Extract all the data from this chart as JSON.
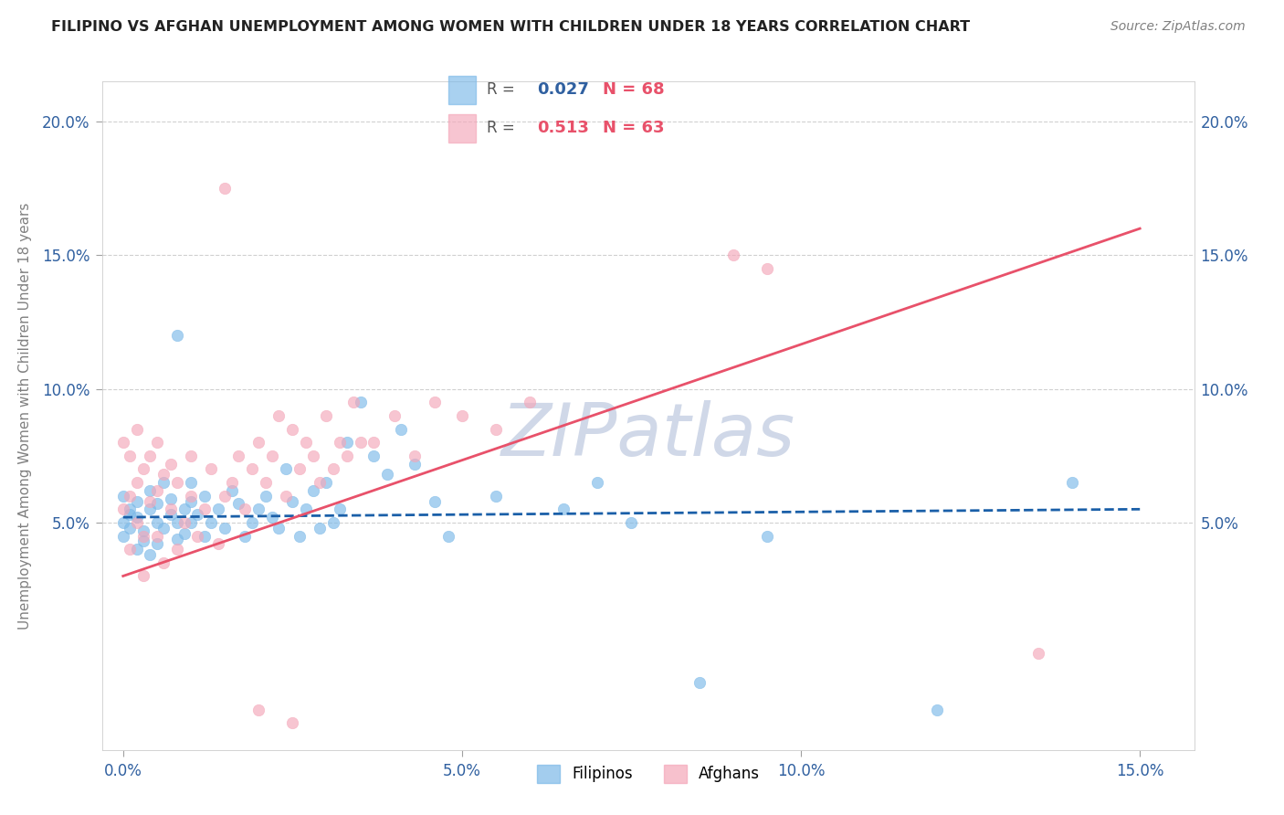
{
  "title": "FILIPINO VS AFGHAN UNEMPLOYMENT AMONG WOMEN WITH CHILDREN UNDER 18 YEARS CORRELATION CHART",
  "source": "Source: ZipAtlas.com",
  "ylabel": "Unemployment Among Women with Children Under 18 years",
  "ytick_values": [
    0.05,
    0.1,
    0.15,
    0.2
  ],
  "ytick_labels": [
    "5.0%",
    "10.0%",
    "15.0%",
    "20.0%"
  ],
  "xtick_values": [
    0.0,
    0.05,
    0.1,
    0.15
  ],
  "xtick_labels": [
    "0.0%",
    "5.0%",
    "10.0%",
    "15.0%"
  ],
  "xlim": [
    -0.003,
    0.158
  ],
  "ylim": [
    -0.035,
    0.215
  ],
  "legend_filipinos_R": "0.027",
  "legend_filipinos_N": "68",
  "legend_afghans_R": "0.513",
  "legend_afghans_N": "63",
  "color_filipinos": "#7cb9e8",
  "color_afghans": "#f4a7b9",
  "color_line_filipinos": "#1a5fa8",
  "color_line_afghans": "#e8516a",
  "watermark": "ZIPatlas",
  "watermark_color": "#d0d8e8"
}
